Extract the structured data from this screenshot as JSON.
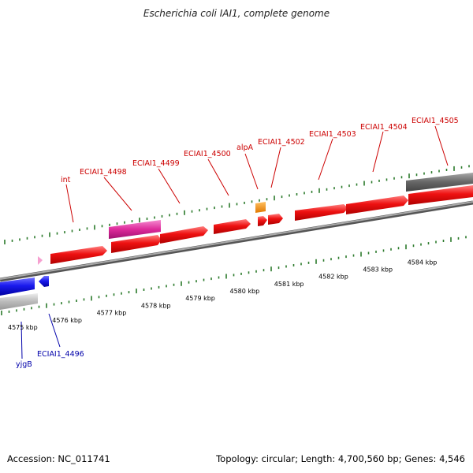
{
  "title": "Escherichia coli IAI1, complete genome",
  "footer": {
    "accession": "Accession: NC_011741",
    "summary": "Topology: circular; Length: 4,700,560 bp; Genes: 4,546"
  },
  "colors": {
    "forward_cds": "#ee1111",
    "reverse_cds": "#1a1aee",
    "forward_label": "#cc0000",
    "reverse_label": "#0000aa",
    "backbone": "#888888",
    "tick": "#2a7a2a",
    "pseudo": "#dd2a9a",
    "rna": "#f08800",
    "gray_feature": "#666666",
    "light_gray_feature": "#bbbbbb"
  },
  "kbp_ticks": [
    {
      "label": "4575 kbp",
      "kb": 4575
    },
    {
      "label": "4576 kbp",
      "kb": 4576
    },
    {
      "label": "4577 kbp",
      "kb": 4577
    },
    {
      "label": "4578 kbp",
      "kb": 4578
    },
    {
      "label": "4579 kbp",
      "kb": 4579
    },
    {
      "label": "4580 kbp",
      "kb": 4580
    },
    {
      "label": "4581 kbp",
      "kb": 4581
    },
    {
      "label": "4582 kbp",
      "kb": 4582
    },
    {
      "label": "4583 kbp",
      "kb": 4583
    },
    {
      "label": "4584 kbp",
      "kb": 4584
    }
  ],
  "gene_labels": [
    {
      "name": "int",
      "strand": "forward"
    },
    {
      "name": "ECIAI1_4498",
      "strand": "forward"
    },
    {
      "name": "ECIAI1_4499",
      "strand": "forward"
    },
    {
      "name": "ECIAI1_4500",
      "strand": "forward"
    },
    {
      "name": "alpA",
      "strand": "forward"
    },
    {
      "name": "ECIAI1_4502",
      "strand": "forward"
    },
    {
      "name": "ECIAI1_4503",
      "strand": "forward"
    },
    {
      "name": "ECIAI1_4504",
      "strand": "forward"
    },
    {
      "name": "ECIAI1_4505",
      "strand": "forward"
    },
    {
      "name": "yjgB",
      "strand": "reverse"
    },
    {
      "name": "ECIAI1_4496",
      "strand": "reverse"
    }
  ]
}
